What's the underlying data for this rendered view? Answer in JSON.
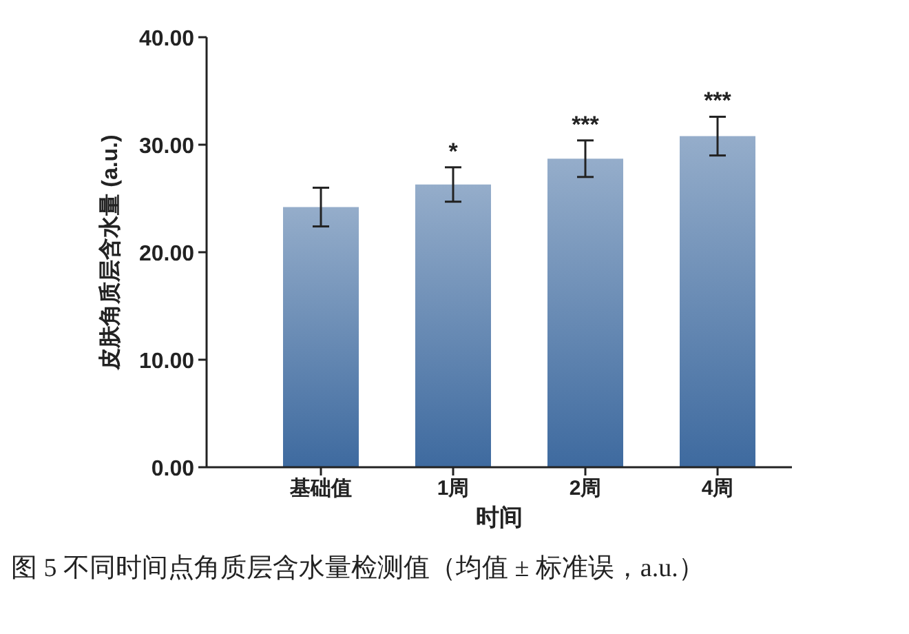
{
  "chart_data": {
    "type": "bar",
    "xlabel": "时间",
    "ylabel": "皮肤角质层含水量 (a.u.)",
    "categories": [
      "基础值",
      "1周",
      "2周",
      "4周"
    ],
    "values": [
      24.2,
      26.3,
      28.7,
      30.8
    ],
    "errors": [
      1.8,
      1.6,
      1.7,
      1.8
    ],
    "color": "#3e6a9f",
    "ylim": [
      0,
      40
    ],
    "yticks": [
      {
        "value": 0,
        "label": "0.00"
      },
      {
        "value": 10,
        "label": "10.00"
      },
      {
        "value": 20,
        "label": "20.00"
      },
      {
        "value": 30,
        "label": "30.00"
      },
      {
        "value": 40,
        "label": "40.00"
      }
    ],
    "grid": false,
    "annotations": [
      {
        "text": "*",
        "x": "1周",
        "y": 27.9
      },
      {
        "text": "***",
        "x": "2周",
        "y": 30.4
      },
      {
        "text": "***",
        "x": "4周",
        "y": 32.6
      },
      "图 5  不同时间点角质层含水量检测值（均值 ± 标准误，a.u.）"
    ]
  }
}
